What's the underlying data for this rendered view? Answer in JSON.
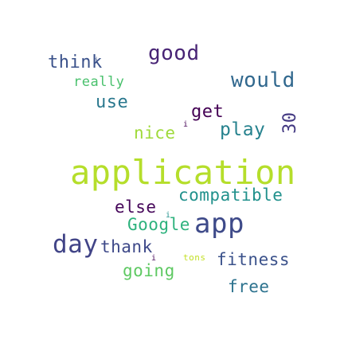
{
  "words": [
    {
      "text": "application",
      "color": "#b5de2b"
    },
    {
      "text": "app",
      "color": "#3e4a89"
    },
    {
      "text": "would",
      "color": "#31688e"
    },
    {
      "text": "good",
      "color": "#482475"
    },
    {
      "text": "think",
      "color": "#3b528b"
    },
    {
      "text": "really",
      "color": "#4ac16d"
    },
    {
      "text": "use",
      "color": "#2a788e"
    },
    {
      "text": "get",
      "color": "#440154"
    },
    {
      "text": "nice",
      "color": "#9fda3a"
    },
    {
      "text": "play",
      "color": "#26828e"
    },
    {
      "text": "30",
      "color": "#443a83"
    },
    {
      "text": "compatible",
      "color": "#21918c"
    },
    {
      "text": "else",
      "color": "#46075a"
    },
    {
      "text": "Google",
      "color": "#2db27d"
    },
    {
      "text": "day",
      "color": "#414487"
    },
    {
      "text": "thank",
      "color": "#3e4989"
    },
    {
      "text": "going",
      "color": "#5ec962"
    },
    {
      "text": "fitness",
      "color": "#3b528b"
    },
    {
      "text": "free",
      "color": "#2c728e"
    },
    {
      "text": "tons",
      "color": "#c2df23"
    },
    {
      "text": "i",
      "color": "#3b528b"
    },
    {
      "text": "i",
      "color": "#440154"
    },
    {
      "text": "i",
      "color": "#21918c"
    },
    {
      "text": "i",
      "color": "#46075a"
    }
  ]
}
